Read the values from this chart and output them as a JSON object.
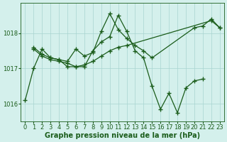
{
  "title": "Graphe pression niveau de la mer (hPa)",
  "background_color": "#d4f0ec",
  "line_color": "#1a5c1a",
  "grid_color": "#a8d4d0",
  "xlim": [
    -0.5,
    23.5
  ],
  "ylim": [
    1015.5,
    1018.85
  ],
  "yticks": [
    1016,
    1017,
    1018
  ],
  "xticks": [
    0,
    1,
    2,
    3,
    4,
    5,
    6,
    7,
    8,
    9,
    10,
    11,
    12,
    13,
    14,
    15,
    16,
    17,
    18,
    19,
    20,
    21,
    22,
    23
  ],
  "series": [
    {
      "x": [
        0,
        1,
        2,
        3,
        4,
        5,
        6,
        7,
        8,
        9,
        10,
        11,
        12,
        22,
        23
      ],
      "y": [
        1016.1,
        1017.0,
        1017.55,
        1017.3,
        1017.25,
        1017.05,
        1017.05,
        1017.1,
        1017.2,
        1017.35,
        1017.5,
        1017.6,
        1017.65,
        1018.35,
        1018.15
      ]
    },
    {
      "x": [
        1,
        2,
        3,
        4,
        5,
        6,
        7,
        8,
        9,
        10,
        11,
        12,
        13,
        14,
        15,
        20,
        21,
        22,
        23
      ],
      "y": [
        1017.6,
        1017.4,
        1017.3,
        1017.25,
        1017.2,
        1017.55,
        1017.35,
        1017.45,
        1018.05,
        1018.55,
        1018.1,
        1017.85,
        1017.65,
        1017.5,
        1017.3,
        1018.15,
        1018.2,
        1018.4,
        1018.15
      ]
    },
    {
      "x": [
        1,
        2,
        3,
        4,
        5,
        6,
        7,
        8,
        9,
        10,
        11,
        12,
        13,
        14,
        15,
        16,
        17,
        18,
        19,
        20,
        21
      ],
      "y": [
        1017.55,
        1017.35,
        1017.25,
        1017.2,
        1017.15,
        1017.05,
        1017.05,
        1017.5,
        1017.75,
        1017.9,
        1018.5,
        1018.05,
        1017.5,
        1017.3,
        1016.5,
        1015.85,
        1016.3,
        1015.75,
        1016.45,
        1016.65,
        1016.7
      ]
    }
  ],
  "marker": "+",
  "markersize": 4,
  "linewidth": 0.9,
  "fontsize_tick": 6,
  "title_fontsize": 7,
  "title_color": "#1a5c1a",
  "tick_color": "#1a5c1a"
}
